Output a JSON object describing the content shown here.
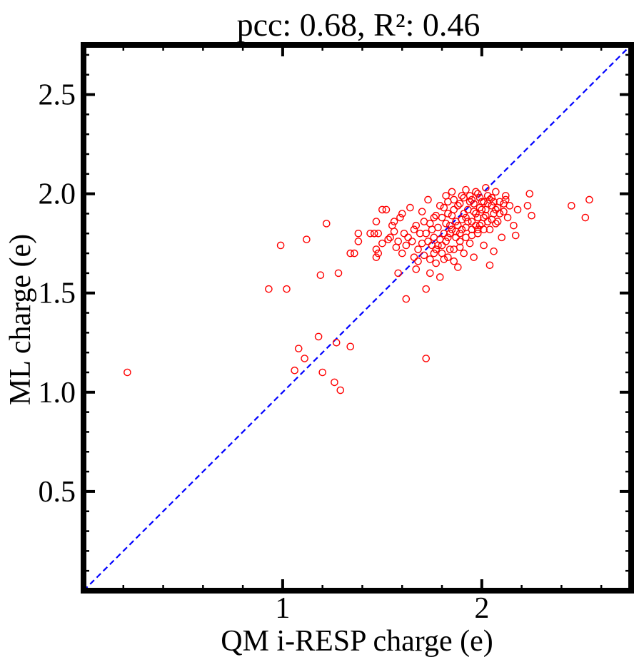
{
  "chart_data": {
    "type": "scatter",
    "title": "pcc: 0.68, R²: 0.46",
    "xlabel": "QM i-RESP charge (e)",
    "ylabel": "ML charge (e)",
    "xlim": [
      0.0,
      2.75
    ],
    "ylim": [
      0.0,
      2.75
    ],
    "x_ticks": [
      {
        "value": 1,
        "label": "1"
      },
      {
        "value": 2,
        "label": "2"
      }
    ],
    "y_ticks": [
      {
        "value": 0.5,
        "label": "0.5"
      },
      {
        "value": 1.0,
        "label": "1.0"
      },
      {
        "value": 1.5,
        "label": "1.5"
      },
      {
        "value": 2.0,
        "label": "2.0"
      },
      {
        "value": 2.5,
        "label": "2.5"
      }
    ],
    "grid": false,
    "reference_line": {
      "type": "y=x",
      "style": "dashed",
      "color": "#0000ff"
    },
    "marker": {
      "shape": "open-circle",
      "color": "#ff0000"
    },
    "series": [
      {
        "points": [
          [
            0.22,
            1.1
          ],
          [
            0.93,
            1.52
          ],
          [
            0.99,
            1.74
          ],
          [
            1.02,
            1.52
          ],
          [
            1.06,
            1.11
          ],
          [
            1.08,
            1.22
          ],
          [
            1.11,
            1.17
          ],
          [
            1.12,
            1.77
          ],
          [
            1.18,
            1.28
          ],
          [
            1.19,
            1.59
          ],
          [
            1.2,
            1.1
          ],
          [
            1.22,
            1.85
          ],
          [
            1.26,
            1.05
          ],
          [
            1.27,
            1.25
          ],
          [
            1.28,
            1.6
          ],
          [
            1.29,
            1.01
          ],
          [
            1.34,
            1.23
          ],
          [
            1.34,
            1.7
          ],
          [
            1.36,
            1.7
          ],
          [
            1.38,
            1.76
          ],
          [
            1.38,
            1.8
          ],
          [
            1.44,
            1.8
          ],
          [
            1.46,
            1.8
          ],
          [
            1.47,
            1.86
          ],
          [
            1.47,
            1.68
          ],
          [
            1.47,
            1.72
          ],
          [
            1.48,
            1.8
          ],
          [
            1.48,
            1.7
          ],
          [
            1.5,
            1.92
          ],
          [
            1.5,
            1.75
          ],
          [
            1.52,
            1.92
          ],
          [
            1.53,
            1.77
          ],
          [
            1.56,
            1.86
          ],
          [
            1.56,
            1.81
          ],
          [
            1.57,
            1.73
          ],
          [
            1.58,
            1.6
          ],
          [
            1.59,
            1.88
          ],
          [
            1.6,
            1.9
          ],
          [
            1.62,
            1.47
          ],
          [
            1.63,
            1.78
          ],
          [
            1.64,
            1.93
          ],
          [
            1.66,
            1.68
          ],
          [
            1.67,
            1.62
          ],
          [
            1.67,
            1.84
          ],
          [
            1.7,
            1.91
          ],
          [
            1.72,
            1.52
          ],
          [
            1.72,
            1.17
          ],
          [
            1.73,
            1.97
          ],
          [
            1.74,
            1.6
          ],
          [
            1.75,
            1.82
          ],
          [
            1.76,
            1.7
          ],
          [
            1.76,
            1.88
          ],
          [
            1.78,
            1.74
          ],
          [
            1.79,
            1.94
          ],
          [
            1.79,
            1.58
          ],
          [
            1.81,
            1.67
          ],
          [
            1.82,
            1.85
          ],
          [
            1.82,
            1.99
          ],
          [
            1.83,
            1.78
          ],
          [
            1.84,
            1.72
          ],
          [
            1.85,
            2.01
          ],
          [
            1.85,
            1.89
          ],
          [
            1.86,
            1.66
          ],
          [
            1.87,
            1.81
          ],
          [
            1.88,
            1.94
          ],
          [
            1.88,
            1.63
          ],
          [
            1.89,
            1.76
          ],
          [
            1.9,
            1.99
          ],
          [
            1.9,
            1.87
          ],
          [
            1.91,
            1.7
          ],
          [
            1.92,
            2.02
          ],
          [
            1.92,
            1.83
          ],
          [
            1.93,
            1.92
          ],
          [
            1.94,
            1.75
          ],
          [
            1.95,
            1.97
          ],
          [
            1.95,
            1.86
          ],
          [
            1.96,
            1.68
          ],
          [
            1.97,
            1.9
          ],
          [
            1.98,
            2.0
          ],
          [
            1.98,
            1.8
          ],
          [
            1.99,
            1.93
          ],
          [
            2.0,
            1.85
          ],
          [
            2.0,
            1.96
          ],
          [
            2.01,
            1.74
          ],
          [
            2.02,
            2.03
          ],
          [
            2.02,
            1.89
          ],
          [
            2.03,
            1.95
          ],
          [
            2.04,
            1.82
          ],
          [
            2.04,
            1.64
          ],
          [
            2.05,
            1.98
          ],
          [
            2.06,
            1.9
          ],
          [
            2.06,
            1.71
          ],
          [
            2.07,
            2.01
          ],
          [
            2.08,
            1.86
          ],
          [
            2.08,
            1.93
          ],
          [
            2.09,
            1.96
          ],
          [
            2.1,
            1.78
          ],
          [
            2.11,
            1.91
          ],
          [
            2.12,
            1.97
          ],
          [
            2.13,
            1.88
          ],
          [
            2.14,
            1.94
          ],
          [
            2.16,
            1.84
          ],
          [
            2.17,
            1.79
          ],
          [
            2.18,
            1.92
          ],
          [
            2.23,
            1.94
          ],
          [
            2.24,
            2.0
          ],
          [
            2.25,
            1.89
          ],
          [
            2.45,
            1.94
          ],
          [
            2.52,
            1.88
          ],
          [
            2.54,
            1.97
          ],
          [
            1.7,
            1.75
          ],
          [
            1.72,
            1.8
          ],
          [
            1.74,
            1.85
          ],
          [
            1.76,
            1.78
          ],
          [
            1.78,
            1.83
          ],
          [
            1.8,
            1.88
          ],
          [
            1.81,
            1.8
          ],
          [
            1.83,
            1.9
          ],
          [
            1.84,
            1.84
          ],
          [
            1.86,
            1.92
          ],
          [
            1.87,
            1.86
          ],
          [
            1.89,
            1.95
          ],
          [
            1.9,
            1.82
          ],
          [
            1.91,
            1.9
          ],
          [
            1.93,
            1.86
          ],
          [
            1.94,
            1.96
          ],
          [
            1.96,
            1.91
          ],
          [
            1.97,
            1.84
          ],
          [
            1.99,
            1.98
          ],
          [
            2.0,
            1.92
          ],
          [
            2.01,
            1.88
          ],
          [
            2.03,
            1.99
          ],
          [
            2.05,
            1.94
          ],
          [
            1.75,
            1.74
          ],
          [
            1.77,
            1.72
          ],
          [
            1.79,
            1.77
          ],
          [
            1.8,
            1.74
          ],
          [
            1.82,
            1.76
          ],
          [
            1.84,
            1.8
          ],
          [
            1.85,
            1.82
          ],
          [
            1.87,
            1.78
          ],
          [
            1.88,
            1.84
          ],
          [
            1.89,
            1.8
          ],
          [
            1.92,
            1.88
          ],
          [
            1.95,
            1.82
          ],
          [
            1.96,
            1.95
          ],
          [
            1.98,
            1.88
          ],
          [
            1.99,
            1.84
          ],
          [
            2.01,
            1.96
          ],
          [
            2.02,
            1.92
          ],
          [
            2.04,
            1.97
          ],
          [
            2.06,
            1.96
          ],
          [
            2.07,
            1.92
          ],
          [
            1.68,
            1.72
          ],
          [
            1.69,
            1.8
          ],
          [
            1.71,
            1.86
          ],
          [
            1.73,
            1.76
          ],
          [
            1.77,
            1.89
          ],
          [
            1.81,
            1.93
          ],
          [
            1.83,
            1.96
          ],
          [
            1.86,
            1.97
          ],
          [
            1.91,
            1.98
          ],
          [
            1.94,
            1.99
          ],
          [
            1.97,
            2.01
          ],
          [
            1.65,
            1.76
          ],
          [
            1.66,
            1.82
          ],
          [
            1.62,
            1.74
          ],
          [
            1.61,
            1.8
          ],
          [
            1.6,
            1.7
          ],
          [
            1.58,
            1.76
          ],
          [
            1.55,
            1.84
          ],
          [
            1.54,
            1.78
          ],
          [
            1.68,
            1.66
          ],
          [
            1.71,
            1.69
          ],
          [
            1.74,
            1.67
          ],
          [
            1.77,
            1.65
          ],
          [
            1.8,
            1.7
          ],
          [
            1.83,
            1.68
          ],
          [
            1.86,
            1.72
          ],
          [
            1.89,
            1.73
          ],
          [
            1.92,
            1.78
          ],
          [
            1.95,
            1.79
          ],
          [
            1.98,
            1.82
          ],
          [
            2.01,
            1.82
          ],
          [
            2.03,
            1.86
          ],
          [
            2.05,
            1.87
          ],
          [
            2.07,
            1.85
          ],
          [
            2.09,
            1.9
          ],
          [
            2.11,
            1.95
          ],
          [
            2.12,
            1.99
          ]
        ]
      }
    ]
  }
}
